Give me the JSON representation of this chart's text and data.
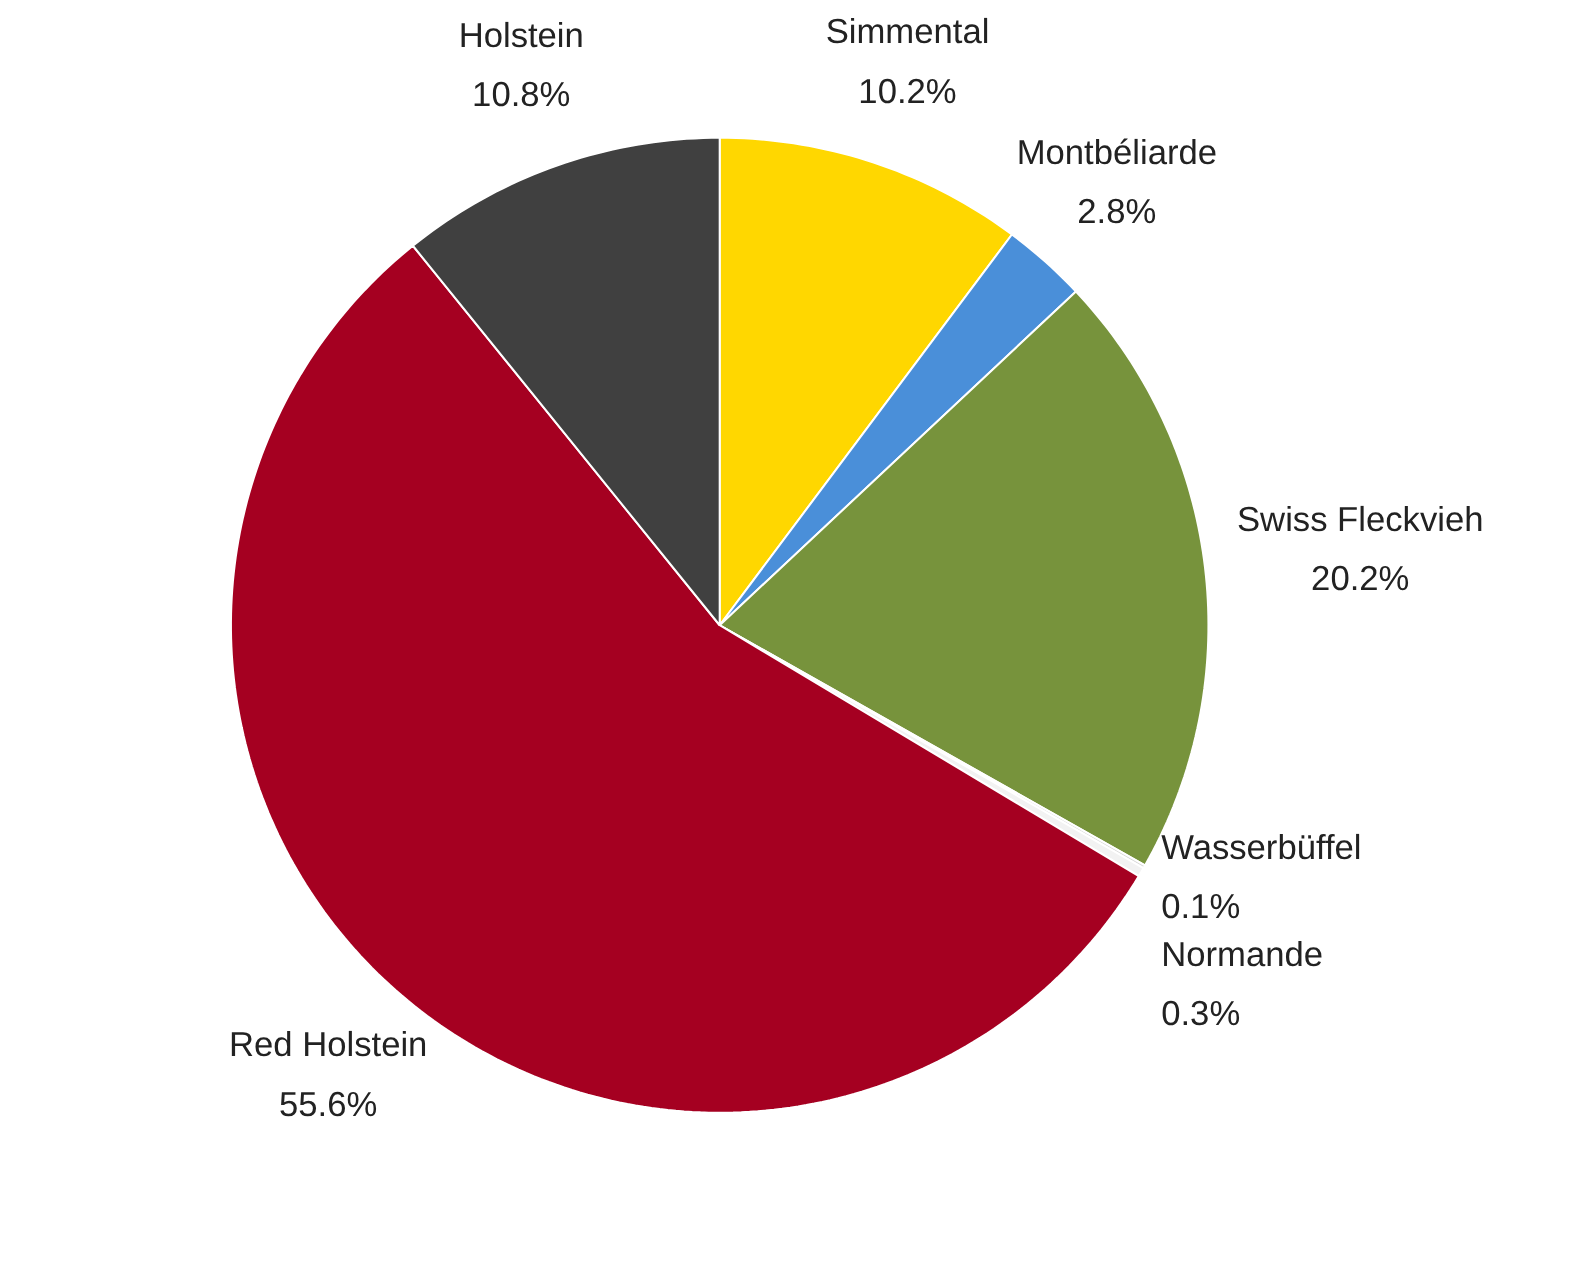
{
  "chart_data": {
    "type": "pie",
    "categories": [
      "Simmental",
      "Montbéliarde",
      "Swiss Fleckvieh",
      "Wasserbüffel",
      "Normande",
      "Red Holstein",
      "Holstein"
    ],
    "values": [
      10.2,
      2.8,
      20.2,
      0.1,
      0.3,
      55.6,
      10.8
    ],
    "colors": [
      "#ffd700",
      "#4a8fd9",
      "#77933c",
      "#d9d9d9",
      "#f2f2f2",
      "#a50021",
      "#404040"
    ],
    "value_labels": [
      "10.2%",
      "2.8%",
      "20.2%",
      "0.1%",
      "0.3%",
      "55.6%",
      "10.8%"
    ],
    "legend": false
  }
}
